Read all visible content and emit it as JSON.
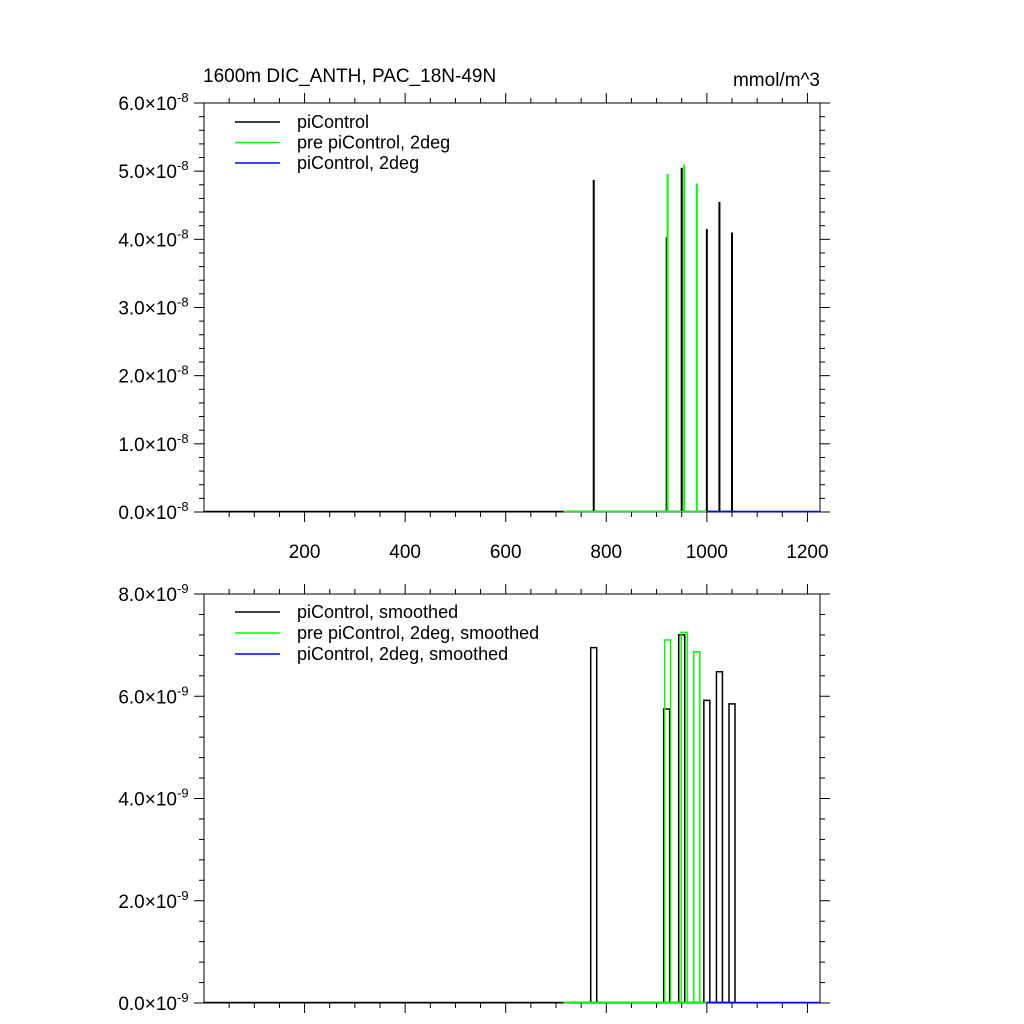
{
  "figure": {
    "title_left": "1600m DIC_ANTH, PAC_18N-49N",
    "title_right": "mmol/m^3"
  },
  "chart_data": [
    {
      "type": "line",
      "id": "raw",
      "xlim": [
        0,
        1225
      ],
      "ylim": [
        0,
        6e-08
      ],
      "x_ticks": [
        200,
        400,
        600,
        800,
        1000,
        1200
      ],
      "x_tick_labels": [
        "200",
        "400",
        "600",
        "800",
        "1000",
        "1200"
      ],
      "y_ticks": [
        0,
        1e-08,
        2e-08,
        3e-08,
        4e-08,
        5e-08,
        6e-08
      ],
      "y_tick_mantissas": [
        "0.0",
        "1.0",
        "2.0",
        "3.0",
        "4.0",
        "5.0",
        "6.0"
      ],
      "y_tick_times": "×",
      "y_tick_base": "10",
      "y_tick_exponent": "-8",
      "legend_position": "top-left",
      "series": [
        {
          "name": "piControl",
          "color": "#000000",
          "baseline": [
            0,
            1050
          ],
          "spikes": [
            [
              775,
              4.87e-08
            ],
            [
              920,
              4.03e-08
            ],
            [
              950,
              5.05e-08
            ],
            [
              1000,
              4.15e-08
            ],
            [
              1025,
              4.55e-08
            ],
            [
              1050,
              4.1e-08
            ]
          ]
        },
        {
          "name": "pre piControl, 2deg",
          "color": "#00ff00",
          "baseline": [
            715,
            1000
          ],
          "spikes": [
            [
              922,
              4.96e-08
            ],
            [
              955,
              5.1e-08
            ],
            [
              980,
              4.82e-08
            ]
          ]
        },
        {
          "name": "piControl, 2deg",
          "color": "#0000ff",
          "baseline": [
            1000,
            1225
          ],
          "spikes": []
        }
      ]
    },
    {
      "type": "line",
      "id": "smoothed",
      "xlim": [
        0,
        1225
      ],
      "ylim": [
        0,
        8e-09
      ],
      "x_ticks": [
        200,
        400,
        600,
        800,
        1000,
        1200
      ],
      "x_tick_labels": [],
      "y_ticks": [
        0,
        2e-09,
        4e-09,
        6e-09,
        8e-09
      ],
      "y_tick_mantissas": [
        "0.0",
        "2.0",
        "4.0",
        "6.0",
        "8.0"
      ],
      "y_tick_times": "×",
      "y_tick_base": "10",
      "y_tick_exponent": "-9",
      "legend_position": "top-left",
      "series": [
        {
          "name": "piControl, smoothed",
          "color": "#000000",
          "baseline": [
            0,
            1050
          ],
          "boxes": [
            [
              775,
              6.95e-09
            ],
            [
              920,
              5.75e-09
            ],
            [
              950,
              7.2e-09
            ],
            [
              1000,
              5.92e-09
            ],
            [
              1025,
              6.48e-09
            ],
            [
              1050,
              5.85e-09
            ]
          ]
        },
        {
          "name": "pre piControl, 2deg, smoothed",
          "color": "#00ff00",
          "baseline": [
            715,
            1000
          ],
          "boxes": [
            [
              922,
              7.1e-09
            ],
            [
              955,
              7.25e-09
            ],
            [
              980,
              6.87e-09
            ]
          ]
        },
        {
          "name": "piControl, 2deg, smoothed",
          "color": "#0000ff",
          "baseline": [
            1000,
            1225
          ],
          "boxes": []
        }
      ]
    }
  ]
}
